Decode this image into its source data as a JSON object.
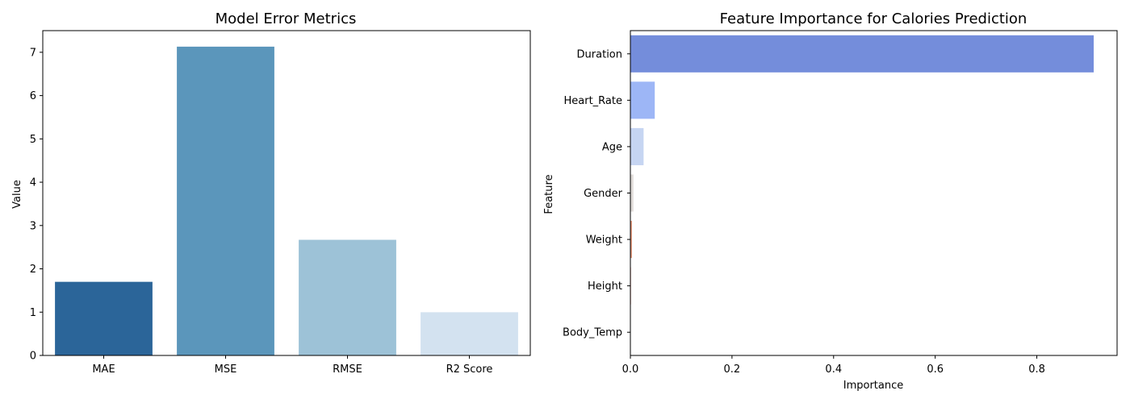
{
  "chart_data": [
    {
      "type": "bar",
      "title": "Model Error Metrics",
      "xlabel": "",
      "ylabel": "Value",
      "categories": [
        "MAE",
        "MSE",
        "RMSE",
        "R2 Score"
      ],
      "values": [
        1.7,
        7.13,
        2.67,
        0.998
      ],
      "colors": [
        "#2b6599",
        "#5b96bb",
        "#9dc2d7",
        "#d3e2f0"
      ],
      "ylim": [
        0,
        7.5
      ],
      "yticks": [
        0,
        1,
        2,
        3,
        4,
        5,
        6,
        7
      ],
      "orientation": "vertical"
    },
    {
      "type": "bar",
      "title": "Feature Importance for Calories Prediction",
      "xlabel": "Importance",
      "ylabel": "Feature",
      "categories": [
        "Duration",
        "Heart_Rate",
        "Age",
        "Gender",
        "Weight",
        "Height",
        "Body_Temp"
      ],
      "values": [
        0.912,
        0.048,
        0.026,
        0.006,
        0.003,
        0.001,
        0.0005
      ],
      "colors": [
        "#748ddb",
        "#9db6f6",
        "#c6d5f2",
        "#e0dcd9",
        "#e69475",
        "#d0533f",
        "#b40426"
      ],
      "xlim": [
        0,
        0.958
      ],
      "xticks": [
        0,
        0.2,
        0.4,
        0.6,
        0.8
      ],
      "xtick_labels": [
        "0.0",
        "0.2",
        "0.4",
        "0.6",
        "0.8"
      ],
      "orientation": "horizontal"
    }
  ]
}
